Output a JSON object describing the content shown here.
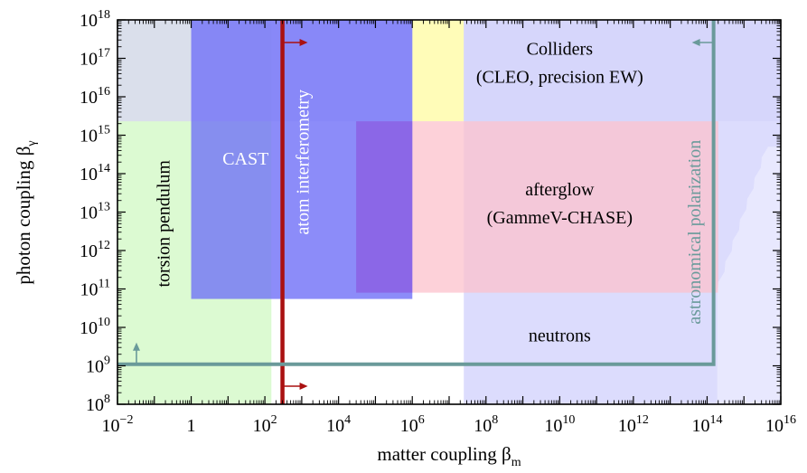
{
  "chart_data": {
    "type": "area",
    "x_scale": "log",
    "y_scale": "log",
    "xlim": [
      0.01,
      1e+16
    ],
    "ylim": [
      100000000.0,
      1e+18
    ],
    "x_ticks": [
      {
        "value": 0.01,
        "base": "10",
        "exp": "−2"
      },
      {
        "value": 1,
        "base": "1",
        "exp": ""
      },
      {
        "value": 100,
        "base": "10",
        "exp": "2"
      },
      {
        "value": 10000.0,
        "base": "10",
        "exp": "4"
      },
      {
        "value": 1000000.0,
        "base": "10",
        "exp": "6"
      },
      {
        "value": 100000000.0,
        "base": "10",
        "exp": "8"
      },
      {
        "value": 10000000000.0,
        "base": "10",
        "exp": "10"
      },
      {
        "value": 1000000000000.0,
        "base": "10",
        "exp": "12"
      },
      {
        "value": 100000000000000.0,
        "base": "10",
        "exp": "14"
      },
      {
        "value": 1e+16,
        "base": "10",
        "exp": "16"
      }
    ],
    "y_ticks": [
      {
        "value": 100000000.0,
        "base": "10",
        "exp": "8"
      },
      {
        "value": 1000000000.0,
        "base": "10",
        "exp": "9"
      },
      {
        "value": 10000000000.0,
        "base": "10",
        "exp": "10"
      },
      {
        "value": 100000000000.0,
        "base": "10",
        "exp": "11"
      },
      {
        "value": 1000000000000.0,
        "base": "10",
        "exp": "12"
      },
      {
        "value": 10000000000000.0,
        "base": "10",
        "exp": "13"
      },
      {
        "value": 100000000000000.0,
        "base": "10",
        "exp": "14"
      },
      {
        "value": 1000000000000000.0,
        "base": "10",
        "exp": "15"
      },
      {
        "value": 1e+16,
        "base": "10",
        "exp": "16"
      },
      {
        "value": 1e+17,
        "base": "10",
        "exp": "17"
      },
      {
        "value": 1e+18,
        "base": "10",
        "exp": "18"
      }
    ],
    "xlabel": {
      "text": "matter coupling β",
      "sub": "m"
    },
    "ylabel": {
      "text": "photon coupling β",
      "sub": "γ"
    },
    "grid": false,
    "regions": [
      {
        "id": "torsion",
        "x": [
          0.01,
          150
        ],
        "y": [
          100000000.0,
          1e+18
        ],
        "color": "#dcfad2",
        "opacity": 1
      },
      {
        "id": "colliders-band",
        "x": [
          0.01,
          1e+16
        ],
        "y": [
          2300000000000000.0,
          1e+18
        ],
        "color": "#d9d9f0",
        "opacity": 0.85
      },
      {
        "id": "yellow",
        "x": [
          1000000.0,
          25000000.0
        ],
        "y": [
          2300000000000000.0,
          1e+18
        ],
        "color": "#fffcb8",
        "opacity": 1
      },
      {
        "id": "neutrons",
        "x": [
          25000000.0,
          1e+16
        ],
        "y": [
          100000000.0,
          1e+18
        ],
        "color": "#d3d3fd",
        "opacity": 0.8
      },
      {
        "id": "afterglow",
        "x": [
          30000.0,
          200000000000000.0
        ],
        "y": [
          80000000000.0,
          2300000000000000.0
        ],
        "color": "#fcc2cc",
        "opacity": 0.75
      },
      {
        "id": "cast",
        "x": [
          1,
          1000000.0
        ],
        "y": [
          55000000000.0,
          1e+18
        ],
        "color": "#6a6af8",
        "opacity": 0.75
      },
      {
        "id": "atom-strip",
        "x": [
          150,
          1000000.0
        ],
        "y": [
          55000000000.0,
          1e+18
        ],
        "color": "#8a8af8",
        "opacity": 0.45
      },
      {
        "id": "afterglow-overlap",
        "x": [
          30000.0,
          1000000.0
        ],
        "y": [
          80000000000.0,
          2300000000000000.0
        ],
        "color": "#8a4fdc",
        "opacity": 0.55
      }
    ],
    "atom_interferometry": {
      "x": 300,
      "color": "#aa1111"
    },
    "astronomical_polarization": {
      "x": 150000000000000.0,
      "y": 1100000000.0,
      "color": "#6a9a9a"
    },
    "labels": [
      {
        "text": "Colliders",
        "x": 10000000000.0,
        "y": 1.6e+17,
        "color": "#000000",
        "rotate": false
      },
      {
        "text": "(CLEO, precision EW)",
        "x": 10000000000.0,
        "y": 3e+16,
        "color": "#000000",
        "rotate": false
      },
      {
        "text": "CAST",
        "x": 30,
        "y": 220000000000000.0,
        "color": "#ffffff",
        "rotate": false
      },
      {
        "text": "afterglow",
        "x": 10000000000.0,
        "y": 35000000000000.0,
        "color": "#000000",
        "rotate": false
      },
      {
        "text": "(GammeV-CHASE)",
        "x": 10000000000.0,
        "y": 6500000000000.0,
        "color": "#000000",
        "rotate": false
      },
      {
        "text": "neutrons",
        "x": 10000000000.0,
        "y": 5500000000.0,
        "color": "#000000",
        "rotate": false
      },
      {
        "text": "torsion pendulum",
        "x": 0.2,
        "y": 5000000000000.0,
        "color": "#000000",
        "rotate": true
      },
      {
        "text": "atom interferometry",
        "x": 1200,
        "y": 200000000000000.0,
        "color": "#ffffff",
        "rotate": true
      },
      {
        "text": "astronomical polarization",
        "x": 50000000000000.0,
        "y": 3000000000000.0,
        "color": "#6a9a9a",
        "rotate": true
      }
    ]
  }
}
